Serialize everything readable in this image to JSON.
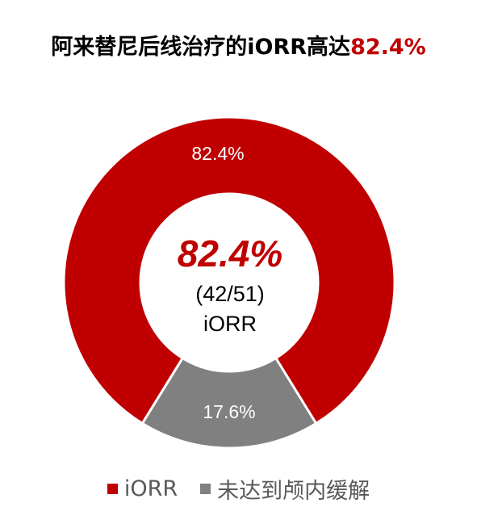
{
  "chart_data": {
    "type": "pie",
    "title_prefix": "阿来替尼后线治疗的iORR高达",
    "title_highlight": "82.4%",
    "slices": [
      {
        "name": "iORR",
        "value": 82.4,
        "label": "82.4%",
        "color": "#c00000"
      },
      {
        "name": "未达到颅内缓解",
        "value": 17.6,
        "label": "17.6%",
        "color": "#808080"
      }
    ],
    "center": {
      "value": "82.4%",
      "fraction": "(42/51)",
      "metric": "iORR"
    },
    "legend_position": "bottom"
  }
}
